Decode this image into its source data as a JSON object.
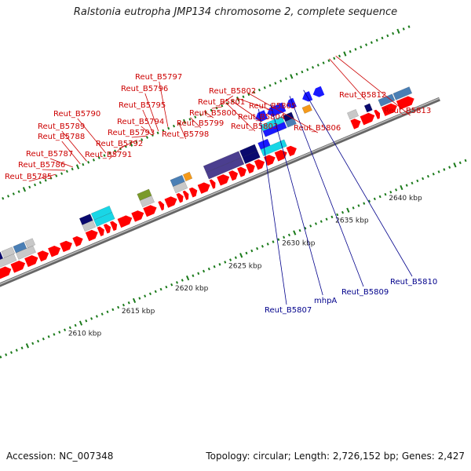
{
  "title": "Ralstonia eutropha JMP134 chromosome 2, complete sequence",
  "accession_text": "Accession: NC_007348",
  "summary_text": "Topology: circular; Length: 2,726,152 bp; Genes: 2,427",
  "colors": {
    "forward_gene": "#ff0000",
    "reverse_gene": "#1a1aff",
    "label_forward": "#cc0000",
    "label_reverse": "#00008b",
    "backbone": "#888888",
    "tick": "#1a7a1a",
    "cog_navy": "#0a0a6e",
    "cog_steel": "#4a7fb5",
    "cog_cyan": "#19d6e6",
    "cog_purple": "#4b3e8f",
    "cog_gray": "#c8c8c8",
    "cog_orange": "#f59a1a",
    "cog_olive": "#7a9a2a"
  },
  "scale": {
    "unit": "kbp",
    "ticks": [
      {
        "kbp": 2610,
        "label": "2610 kbp"
      },
      {
        "kbp": 2615,
        "label": "2615 kbp"
      },
      {
        "kbp": 2620,
        "label": "2620 kbp"
      },
      {
        "kbp": 2625,
        "label": "2625 kbp"
      },
      {
        "kbp": 2630,
        "label": "2630 kbp"
      },
      {
        "kbp": 2635,
        "label": "2635 kbp"
      },
      {
        "kbp": 2640,
        "label": "2640 kbp"
      }
    ]
  },
  "forward_labels": [
    {
      "text": "Reut_B5785",
      "kbp": 2613.0
    },
    {
      "text": "Reut_B5786",
      "kbp": 2613.9
    },
    {
      "text": "Reut_B5787",
      "kbp": 2614.6
    },
    {
      "text": "Reut_B5788",
      "kbp": 2615.3
    },
    {
      "text": "Reut_B5789",
      "kbp": 2615.9
    },
    {
      "text": "Reut_B5790",
      "kbp": 2617.7
    },
    {
      "text": "Reut_B5791",
      "kbp": 2619.3
    },
    {
      "text": "Reut_B5792",
      "kbp": 2620.6
    },
    {
      "text": "Reut_B5793",
      "kbp": 2621.5
    },
    {
      "text": "Reut_B5794",
      "kbp": 2621.9
    },
    {
      "text": "Reut_B5795",
      "kbp": 2622.1
    },
    {
      "text": "Reut_B5796",
      "kbp": 2622.6
    },
    {
      "text": "Reut_B5797",
      "kbp": 2623.5
    },
    {
      "text": "Reut_B5798",
      "kbp": 2624.5
    },
    {
      "text": "Reut_B5799",
      "kbp": 2625.6
    },
    {
      "text": "Reut_B5800",
      "kbp": 2626.9
    },
    {
      "text": "Reut_B5801",
      "kbp": 2627.6
    },
    {
      "text": "Reut_B5802",
      "kbp": 2628.3
    },
    {
      "text": "Reut_B5803",
      "kbp": 2628.9
    },
    {
      "text": "Reut_B5804",
      "kbp": 2629.4
    },
    {
      "text": "Reut_B5805",
      "kbp": 2629.9
    },
    {
      "text": "Reut_B5806",
      "kbp": 2631.0
    },
    {
      "text": "Reut_B5812",
      "kbp": 2638.6
    },
    {
      "text": "Reut_B5813",
      "kbp": 2639.2
    }
  ],
  "reverse_labels": [
    {
      "text": "Reut_B5807",
      "kbp": 2631.3
    },
    {
      "text": "mhpA",
      "kbp": 2632.4
    },
    {
      "text": "Reut_B5809",
      "kbp": 2634.2
    },
    {
      "text": "Reut_B5810",
      "kbp": 2635.5
    }
  ],
  "forward_genes": [
    {
      "start": 2605.0,
      "end": 2606.3
    },
    {
      "start": 2606.4,
      "end": 2607.6
    },
    {
      "start": 2607.7,
      "end": 2608.8
    },
    {
      "start": 2608.9,
      "end": 2609.8
    },
    {
      "start": 2609.9,
      "end": 2610.9
    },
    {
      "start": 2611.0,
      "end": 2612.0
    },
    {
      "start": 2612.2,
      "end": 2613.0
    },
    {
      "start": 2613.4,
      "end": 2614.4
    },
    {
      "start": 2614.5,
      "end": 2615.0
    },
    {
      "start": 2615.1,
      "end": 2615.6
    },
    {
      "start": 2615.7,
      "end": 2616.2
    },
    {
      "start": 2616.4,
      "end": 2617.6
    },
    {
      "start": 2617.7,
      "end": 2618.7
    },
    {
      "start": 2618.8,
      "end": 2619.9
    },
    {
      "start": 2620.2,
      "end": 2620.6
    },
    {
      "start": 2620.8,
      "end": 2621.8
    },
    {
      "start": 2621.9,
      "end": 2622.4
    },
    {
      "start": 2622.5,
      "end": 2622.9
    },
    {
      "start": 2623.1,
      "end": 2623.7
    },
    {
      "start": 2623.9,
      "end": 2624.9
    },
    {
      "start": 2625.0,
      "end": 2625.4
    },
    {
      "start": 2625.7,
      "end": 2626.7
    },
    {
      "start": 2626.8,
      "end": 2627.5
    },
    {
      "start": 2627.6,
      "end": 2628.3
    },
    {
      "start": 2628.4,
      "end": 2629.1
    },
    {
      "start": 2629.2,
      "end": 2630.0
    },
    {
      "start": 2630.1,
      "end": 2631.0
    },
    {
      "start": 2631.1,
      "end": 2632.1
    },
    {
      "start": 2632.2,
      "end": 2633.0
    },
    {
      "start": 2638.2,
      "end": 2639.0
    },
    {
      "start": 2639.1,
      "end": 2640.3
    },
    {
      "start": 2640.4,
      "end": 2640.8
    },
    {
      "start": 2641.1,
      "end": 2642.4
    },
    {
      "start": 2642.5,
      "end": 2644.0
    }
  ],
  "forward_cog_boxes": [
    {
      "start": 2605.0,
      "end": 2606.0,
      "row": 0,
      "color": "#0a0a6e"
    },
    {
      "start": 2606.1,
      "end": 2607.1,
      "row": 0,
      "color": "#c8c8c8"
    },
    {
      "start": 2607.2,
      "end": 2608.2,
      "row": 0,
      "color": "#4a7fb5"
    },
    {
      "start": 2608.3,
      "end": 2609.0,
      "row": 0,
      "color": "#c8c8c8"
    },
    {
      "start": 2605.0,
      "end": 2607.0,
      "row": 1,
      "color": "#c8c8c8"
    },
    {
      "start": 2607.2,
      "end": 2608.8,
      "row": 1,
      "color": "#c8c8c8"
    },
    {
      "start": 2613.4,
      "end": 2614.4,
      "row": 0,
      "color": "#0a0a6e"
    },
    {
      "start": 2613.4,
      "end": 2614.4,
      "row": 1,
      "color": "#c8c8c8"
    },
    {
      "start": 2614.5,
      "end": 2616.2,
      "row": 0,
      "color": "#19d6e6"
    },
    {
      "start": 2614.5,
      "end": 2616.2,
      "row": 1,
      "color": "#19d6e6"
    },
    {
      "start": 2618.8,
      "end": 2619.9,
      "row": 0,
      "color": "#7a9a2a"
    },
    {
      "start": 2618.8,
      "end": 2619.9,
      "row": 1,
      "color": "#c8c8c8"
    },
    {
      "start": 2621.9,
      "end": 2623.0,
      "row": 0,
      "color": "#4a7fb5"
    },
    {
      "start": 2621.9,
      "end": 2623.0,
      "row": 1,
      "color": "#c8c8c8"
    },
    {
      "start": 2623.1,
      "end": 2623.7,
      "row": 0,
      "color": "#f59a1a"
    },
    {
      "start": 2625.0,
      "end": 2628.3,
      "row": 0,
      "color": "#4b3e8f"
    },
    {
      "start": 2625.0,
      "end": 2628.3,
      "row": 1,
      "color": "#4b3e8f"
    },
    {
      "start": 2628.4,
      "end": 2629.8,
      "row": 0,
      "color": "#0a0a6e"
    },
    {
      "start": 2628.4,
      "end": 2629.8,
      "row": 1,
      "color": "#0a0a6e"
    },
    {
      "start": 2630.1,
      "end": 2631.0,
      "row": 0,
      "color": "#1a1aff"
    },
    {
      "start": 2630.1,
      "end": 2632.3,
      "row": 1,
      "color": "#19d6e6"
    },
    {
      "start": 2638.2,
      "end": 2639.0,
      "row": 1,
      "color": "#c8c8c8"
    },
    {
      "start": 2639.8,
      "end": 2640.3,
      "row": 1,
      "color": "#0a0a6e"
    },
    {
      "start": 2641.1,
      "end": 2642.4,
      "row": 1,
      "color": "#4a7fb5"
    },
    {
      "start": 2642.5,
      "end": 2644.0,
      "row": 1,
      "color": "#4a7fb5"
    }
  ],
  "reverse_genes": [
    {
      "start": 2630.7,
      "end": 2631.7,
      "row": 0
    },
    {
      "start": 2631.8,
      "end": 2633.4,
      "row": 0
    },
    {
      "start": 2633.6,
      "end": 2634.4,
      "row": 0
    },
    {
      "start": 2635.1,
      "end": 2635.9,
      "row": 0
    },
    {
      "start": 2636.1,
      "end": 2637.0,
      "row": 0
    }
  ],
  "reverse_cog_boxes": [
    {
      "start": 2630.9,
      "end": 2632.9,
      "row": 1,
      "color": "#19d6e6"
    },
    {
      "start": 2633.0,
      "end": 2633.8,
      "row": 1,
      "color": "#0a0a6e"
    },
    {
      "start": 2630.9,
      "end": 2632.9,
      "row": 2,
      "color": "#1a1aff"
    },
    {
      "start": 2633.0,
      "end": 2633.8,
      "row": 2,
      "color": "#4a7fb5"
    },
    {
      "start": 2634.8,
      "end": 2635.5,
      "row": 1,
      "color": "#f59a1a"
    }
  ]
}
